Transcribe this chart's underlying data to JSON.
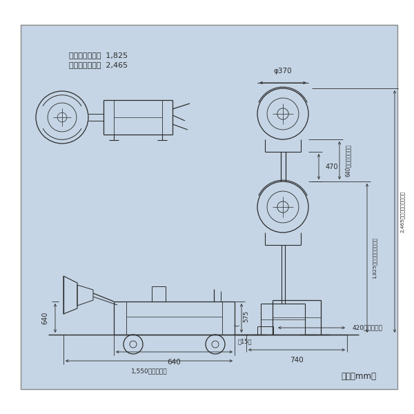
{
  "bg_color": "#c5d5e5",
  "border_color": "#888888",
  "line_color": "#2a2a2a",
  "text_color": "#2a2a2a",
  "bg_outer": "#ffffff",
  "title_line1": "マスト最小高さ  1,825",
  "title_line2": "マスト最大高さ  2,465",
  "unit_text": "単位（mm）",
  "phi370_label": "φ370",
  "label_470": "470",
  "label_640stroke": "640（ストローク）",
  "label_1825": "1,825（マスト最小高さ）",
  "label_2465": "2,465（マスト最大高さ）",
  "label_640w": "640",
  "label_1550": "1,550（収納時）",
  "label_640h": "640",
  "label_15": "（15）",
  "label_575": "575",
  "label_740": "740",
  "label_420": "420（収納時）"
}
